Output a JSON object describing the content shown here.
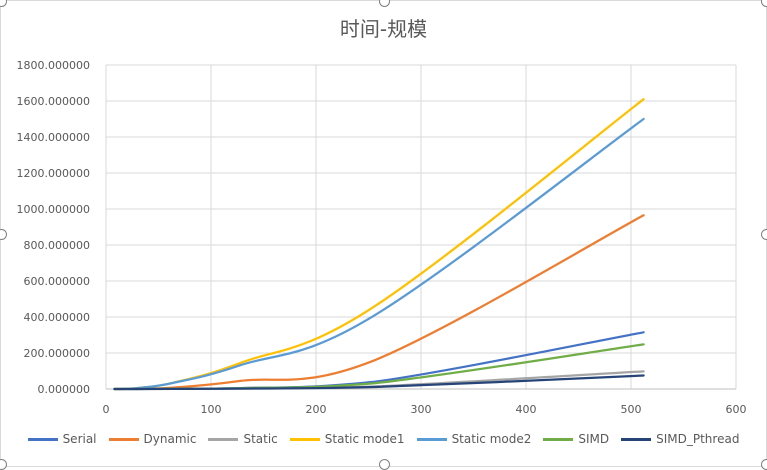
{
  "chart_data": {
    "type": "line",
    "title": "时间-规模",
    "xlabel": "",
    "ylabel": "",
    "xlim": [
      0,
      600
    ],
    "ylim": [
      0,
      1800
    ],
    "xticks": [
      "0",
      "100",
      "200",
      "300",
      "400",
      "500",
      "600"
    ],
    "yticks": [
      "0.000000",
      "200.000000",
      "400.000000",
      "600.000000",
      "800.000000",
      "1000.000000",
      "1200.000000",
      "1400.000000",
      "1600.000000",
      "1800.000000"
    ],
    "grid": true,
    "legend": "bottom",
    "x": [
      8,
      16,
      32,
      64,
      128,
      256,
      512
    ],
    "series": [
      {
        "name": "Serial",
        "color": "#4472c4",
        "values": [
          0.01,
          0.05,
          0.3,
          1.5,
          5,
          40,
          315
        ]
      },
      {
        "name": "Dynamic",
        "color": "#ed7d31",
        "values": [
          0.05,
          0.3,
          1.5,
          8,
          45,
          160,
          965
        ]
      },
      {
        "name": "Static",
        "color": "#a5a5a5",
        "values": [
          0.005,
          0.02,
          0.1,
          0.6,
          2.5,
          14,
          98
        ]
      },
      {
        "name": "Static mode1",
        "color": "#ffc000",
        "values": [
          0.1,
          0.8,
          6,
          35,
          145,
          460,
          1610
        ]
      },
      {
        "name": "Static mode2",
        "color": "#5b9bd5",
        "values": [
          0.1,
          0.8,
          6,
          34,
          132,
          410,
          1500
        ]
      },
      {
        "name": "SIMD",
        "color": "#70ad47",
        "values": [
          0.01,
          0.04,
          0.25,
          1.2,
          4.5,
          32,
          248
        ]
      },
      {
        "name": "SIMD_Pthread",
        "color": "#264478",
        "values": [
          0.005,
          0.02,
          0.1,
          0.5,
          2,
          11,
          75
        ]
      }
    ]
  }
}
